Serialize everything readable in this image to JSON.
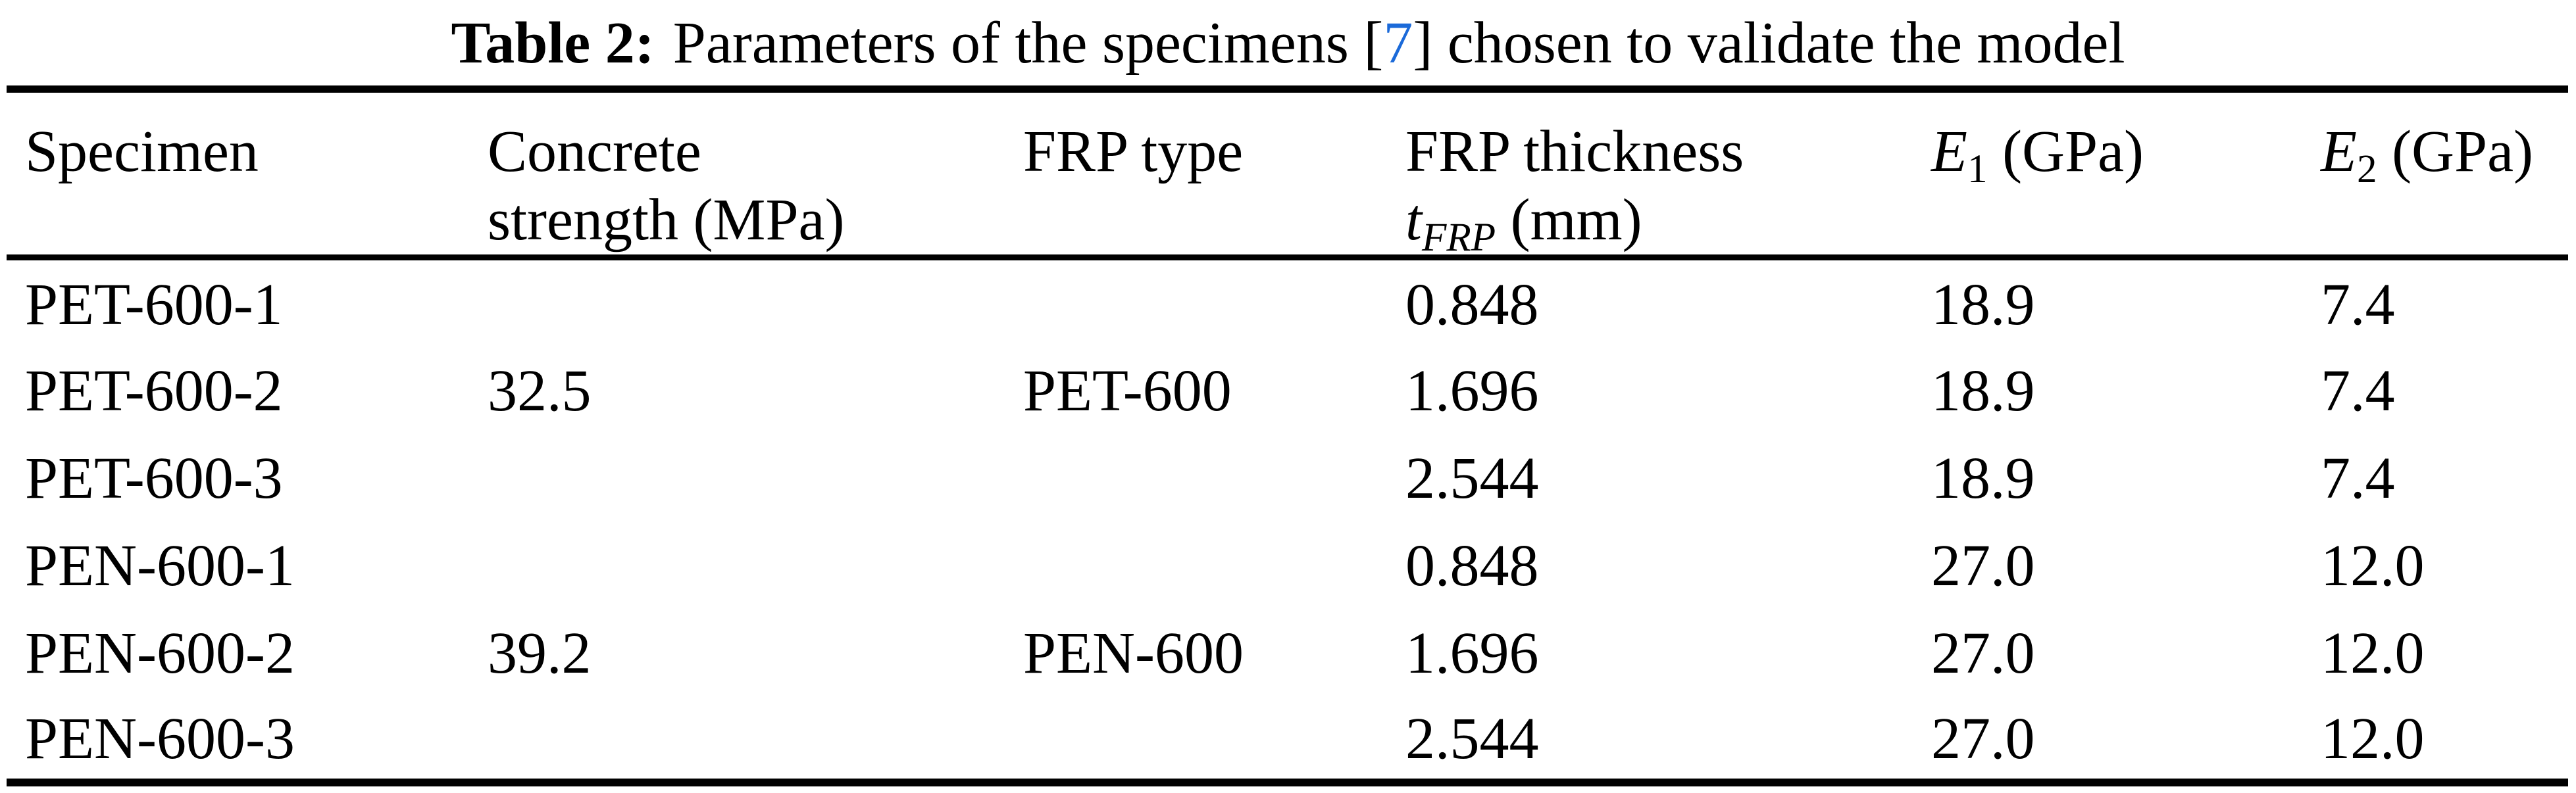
{
  "colors": {
    "text": "#000000",
    "citation_link": "#1b6ad9",
    "background": "#ffffff",
    "rule": "#000000"
  },
  "caption": {
    "label": "Table 2:",
    "before": "Parameters of the specimens ",
    "ref_open": "[",
    "ref": "7",
    "ref_close": "]",
    "after": " chosen to validate the model"
  },
  "table": {
    "columns": [
      {
        "line1": "Specimen",
        "line2": ""
      },
      {
        "line1": "Concrete",
        "line2": "strength (MPa)"
      },
      {
        "line1": "FRP type",
        "line2": ""
      },
      {
        "line1": "FRP thickness",
        "symbol": "t",
        "sub": "FRP",
        "unit": " (mm)"
      },
      {
        "symbol": "E",
        "sub": "1",
        "unit": " (GPa)"
      },
      {
        "symbol": "E",
        "sub": "2",
        "unit": " (GPa)"
      }
    ],
    "rows": [
      {
        "specimen": "PET-600-1",
        "concrete_strength": "",
        "frp_type": "",
        "frp_thickness": "0.848",
        "e1": "18.9",
        "e2": "7.4"
      },
      {
        "specimen": "PET-600-2",
        "concrete_strength": "32.5",
        "frp_type": "PET-600",
        "frp_thickness": "1.696",
        "e1": "18.9",
        "e2": "7.4"
      },
      {
        "specimen": "PET-600-3",
        "concrete_strength": "",
        "frp_type": "",
        "frp_thickness": "2.544",
        "e1": "18.9",
        "e2": "7.4"
      },
      {
        "specimen": "PEN-600-1",
        "concrete_strength": "",
        "frp_type": "",
        "frp_thickness": "0.848",
        "e1": "27.0",
        "e2": "12.0"
      },
      {
        "specimen": "PEN-600-2",
        "concrete_strength": "39.2",
        "frp_type": "PEN-600",
        "frp_thickness": "1.696",
        "e1": "27.0",
        "e2": "12.0"
      },
      {
        "specimen": "PEN-600-3",
        "concrete_strength": "",
        "frp_type": "",
        "frp_thickness": "2.544",
        "e1": "27.0",
        "e2": "12.0"
      }
    ]
  }
}
